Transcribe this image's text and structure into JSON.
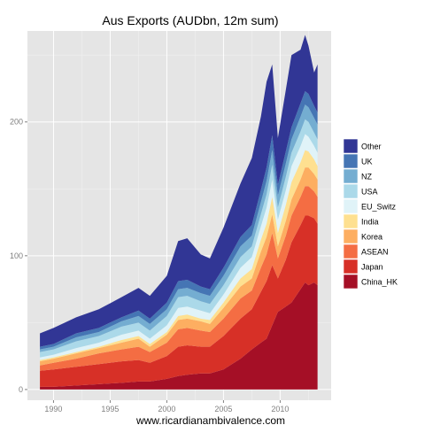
{
  "chart_data": {
    "type": "area",
    "stacked": true,
    "title": "Aus Exports (AUDbn, 12m sum)",
    "caption": "www.ricardianambivalence.com",
    "xlim": [
      1987.7,
      2014.5
    ],
    "ylim": [
      -8,
      268
    ],
    "x_ticks": [
      1990,
      1995,
      2000,
      2005,
      2010
    ],
    "y_ticks": [
      0,
      100,
      200
    ],
    "grid": true,
    "panel_background": "#e5e5e5",
    "legend_position": "right",
    "x": [
      1988.8,
      1990,
      1992,
      1994,
      1996,
      1997.5,
      1998.5,
      2000,
      2001,
      2001.8,
      2003,
      2003.8,
      2005,
      2006.5,
      2007.5,
      2008.3,
      2008.8,
      2009.3,
      2009.8,
      2010.5,
      2011,
      2011.8,
      2012.2,
      2012.5,
      2013,
      2013.3
    ],
    "series": [
      {
        "name": "China_HK",
        "color": "#a50f26",
        "values": [
          2,
          2,
          3,
          4,
          5,
          6,
          6,
          8,
          10,
          11,
          12,
          12,
          15,
          23,
          30,
          35,
          38,
          48,
          58,
          62,
          65,
          75,
          80,
          78,
          80,
          78
        ]
      },
      {
        "name": "Japan",
        "color": "#d73027",
        "values": [
          12,
          13,
          14,
          15,
          16,
          16,
          14,
          17,
          22,
          22,
          20,
          20,
          25,
          30,
          30,
          38,
          43,
          45,
          25,
          35,
          45,
          48,
          50,
          52,
          48,
          46
        ]
      },
      {
        "name": "ASEAN",
        "color": "#f46d43",
        "values": [
          4,
          5,
          6,
          8,
          9,
          10,
          8,
          10,
          13,
          13,
          12,
          11,
          13,
          15,
          14,
          18,
          20,
          24,
          15,
          18,
          20,
          21,
          22,
          22,
          20,
          20
        ]
      },
      {
        "name": "Korea",
        "color": "#fdae61",
        "values": [
          3,
          3,
          4,
          4,
          5,
          6,
          4,
          6,
          7,
          7,
          7,
          6,
          8,
          9,
          9,
          12,
          13,
          14,
          9,
          11,
          12,
          13,
          14,
          14,
          13,
          13
        ]
      },
      {
        "name": "India",
        "color": "#fee090",
        "values": [
          1,
          1,
          1,
          1,
          2,
          2,
          2,
          2,
          3,
          3,
          2,
          3,
          4,
          6,
          7,
          9,
          10,
          13,
          10,
          12,
          13,
          13,
          13,
          12,
          11,
          10
        ]
      },
      {
        "name": "EU_Switz",
        "color": "#e0f3f8",
        "values": [
          2,
          2,
          3,
          3,
          4,
          4,
          4,
          5,
          6,
          6,
          6,
          5,
          6,
          8,
          9,
          10,
          12,
          13,
          10,
          11,
          12,
          12,
          12,
          11,
          10,
          10
        ]
      },
      {
        "name": "USA",
        "color": "#abd9e9",
        "values": [
          4,
          4,
          5,
          5,
          6,
          6,
          6,
          7,
          8,
          8,
          7,
          7,
          7,
          8,
          8,
          9,
          10,
          11,
          9,
          10,
          10,
          11,
          11,
          11,
          10,
          10
        ]
      },
      {
        "name": "NZ",
        "color": "#74add1",
        "values": [
          2,
          2,
          3,
          3,
          4,
          5,
          5,
          5,
          6,
          6,
          6,
          6,
          7,
          8,
          8,
          9,
          10,
          11,
          9,
          10,
          10,
          11,
          11,
          11,
          11,
          11
        ]
      },
      {
        "name": "UK",
        "color": "#4575b4",
        "values": [
          2,
          2,
          3,
          3,
          3,
          4,
          4,
          5,
          6,
          6,
          5,
          5,
          6,
          7,
          8,
          9,
          10,
          11,
          8,
          9,
          9,
          10,
          10,
          10,
          9,
          9
        ]
      },
      {
        "name": "Other",
        "color": "#313695",
        "values": [
          10,
          12,
          12,
          14,
          15,
          17,
          17,
          20,
          30,
          31,
          24,
          23,
          30,
          40,
          50,
          55,
          64,
          53,
          35,
          46,
          54,
          40,
          42,
          36,
          25,
          36
        ]
      }
    ]
  }
}
